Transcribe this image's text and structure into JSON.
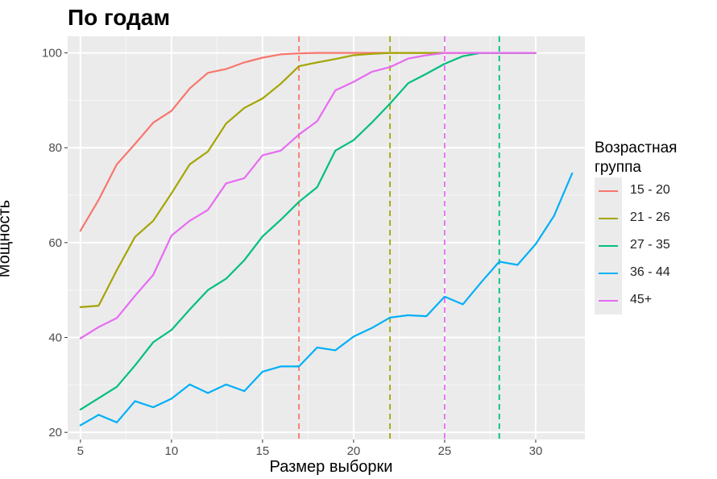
{
  "chart_data": {
    "type": "line",
    "title": "По годам",
    "xlabel": "Размер выборки",
    "ylabel": "Мощность",
    "xlim": [
      4.3,
      32.7
    ],
    "ylim": [
      18.5,
      103.5
    ],
    "xticks": [
      5,
      10,
      15,
      20,
      25,
      30
    ],
    "yticks": [
      20,
      40,
      60,
      80,
      100
    ],
    "grid": true,
    "legend": {
      "title": "Возрастная\nгруппа",
      "placement": "right"
    },
    "series": [
      {
        "name": "15 - 20",
        "color": "#F8766D",
        "x": [
          5,
          6,
          7,
          8,
          9,
          10,
          11,
          12,
          13,
          14,
          15,
          16,
          17,
          18,
          19,
          20,
          21,
          22,
          23,
          24,
          25,
          26,
          27,
          28,
          29,
          30
        ],
        "values": [
          62.5,
          69,
          76.5,
          80.8,
          85.3,
          87.8,
          92.5,
          95.8,
          96.6,
          98,
          99,
          99.7,
          99.9,
          100,
          100,
          100,
          100,
          100,
          100,
          100,
          100,
          100,
          100,
          100,
          100,
          100
        ]
      },
      {
        "name": "21 - 26",
        "color": "#A3A500",
        "x": [
          5,
          6,
          7,
          8,
          9,
          10,
          11,
          12,
          13,
          14,
          15,
          16,
          17,
          18,
          19,
          20,
          21,
          22,
          23,
          24,
          25,
          26,
          27,
          28,
          29,
          30
        ],
        "values": [
          46.4,
          46.7,
          54.2,
          61.2,
          64.6,
          70.4,
          76.5,
          79.2,
          85.1,
          88.4,
          90.4,
          93.5,
          97.2,
          98,
          98.7,
          99.5,
          99.8,
          100,
          100,
          100,
          100,
          100,
          100,
          100,
          100,
          100
        ]
      },
      {
        "name": "27 - 35",
        "color": "#00BF7D",
        "x": [
          5,
          6,
          7,
          8,
          9,
          10,
          11,
          12,
          13,
          14,
          15,
          16,
          17,
          18,
          19,
          20,
          21,
          22,
          23,
          24,
          25,
          26,
          27,
          28,
          29,
          30
        ],
        "values": [
          24.8,
          27.2,
          29.6,
          34.1,
          39,
          41.6,
          45.9,
          50,
          52.4,
          56.3,
          61.3,
          64.8,
          68.6,
          71.7,
          79.4,
          81.6,
          85.3,
          89.3,
          93.6,
          95.6,
          97.7,
          99.3,
          100,
          100,
          100,
          100
        ]
      },
      {
        "name": "36 - 44",
        "color": "#00B0F6",
        "x": [
          5,
          6,
          7,
          8,
          9,
          10,
          11,
          12,
          13,
          14,
          15,
          16,
          17,
          18,
          19,
          20,
          21,
          22,
          23,
          24,
          25,
          26,
          27,
          28,
          29,
          30,
          31,
          32
        ],
        "values": [
          21.5,
          23.7,
          22.1,
          26.6,
          25.3,
          27.1,
          30.1,
          28.3,
          30.1,
          28.7,
          32.8,
          33.9,
          33.9,
          37.9,
          37.3,
          40.2,
          42,
          44.2,
          44.7,
          44.5,
          48.6,
          47,
          51.6,
          56,
          55.3,
          59.7,
          65.6,
          74.6
        ]
      },
      {
        "name": "45+",
        "color": "#E76BF3",
        "x": [
          5,
          6,
          7,
          8,
          9,
          10,
          11,
          12,
          13,
          14,
          15,
          16,
          17,
          18,
          19,
          20,
          21,
          22,
          23,
          24,
          25,
          26,
          27,
          28,
          29,
          30
        ],
        "values": [
          39.8,
          42.2,
          44.1,
          48.8,
          53.2,
          61.5,
          64.6,
          66.9,
          72.5,
          73.6,
          78.4,
          79.4,
          82.8,
          85.6,
          92.1,
          93.9,
          96,
          97,
          98.8,
          99.5,
          100,
          100,
          100,
          100,
          100,
          100
        ]
      }
    ],
    "vlines": [
      {
        "x": 17,
        "color": "#F8766D",
        "style": "dashed"
      },
      {
        "x": 22,
        "color": "#A3A500",
        "style": "dashed"
      },
      {
        "x": 25,
        "color": "#E76BF3",
        "style": "dashed"
      },
      {
        "x": 28,
        "color": "#00BF7D",
        "style": "dashed"
      }
    ]
  }
}
